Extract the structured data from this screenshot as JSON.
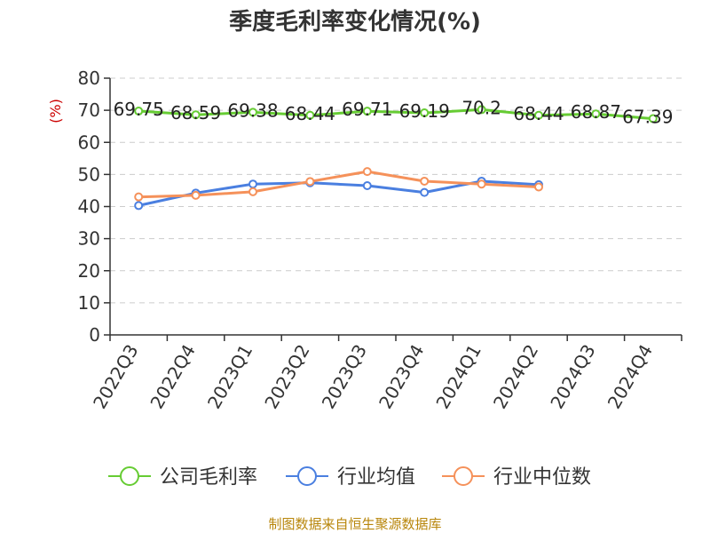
{
  "chart_data": {
    "type": "line",
    "title": "季度毛利率变化情况(%)",
    "ylabel": "(%)",
    "xlabel": "",
    "ylim": [
      0,
      80
    ],
    "yticks": [
      0,
      10,
      20,
      30,
      40,
      50,
      60,
      70,
      80
    ],
    "grid": true,
    "legend_position": "bottom",
    "categories": [
      "2022Q3",
      "2022Q4",
      "2023Q1",
      "2023Q2",
      "2023Q3",
      "2023Q4",
      "2024Q1",
      "2024Q2",
      "2024Q3",
      "2024Q4"
    ],
    "series": [
      {
        "name": "公司毛利率",
        "color": "#66cc33",
        "values": [
          69.75,
          68.59,
          69.38,
          68.44,
          69.71,
          69.19,
          70.2,
          68.44,
          68.87,
          67.39
        ],
        "data_labels": [
          "69.75",
          "68.59",
          "69.38",
          "68.44",
          "69.71",
          "69.19",
          "70.2",
          "68.44",
          "68.87",
          "67.39"
        ]
      },
      {
        "name": "行业均值",
        "color": "#4a7fe0",
        "values": [
          40.3,
          44.2,
          47.0,
          47.4,
          46.5,
          44.4,
          47.9,
          46.8,
          null,
          null
        ]
      },
      {
        "name": "行业中位数",
        "color": "#f5915a",
        "values": [
          43.0,
          43.5,
          44.6,
          47.8,
          50.9,
          47.9,
          47.0,
          46.1,
          null,
          null
        ]
      }
    ],
    "source": "制图数据来自恒生聚源数据库"
  }
}
